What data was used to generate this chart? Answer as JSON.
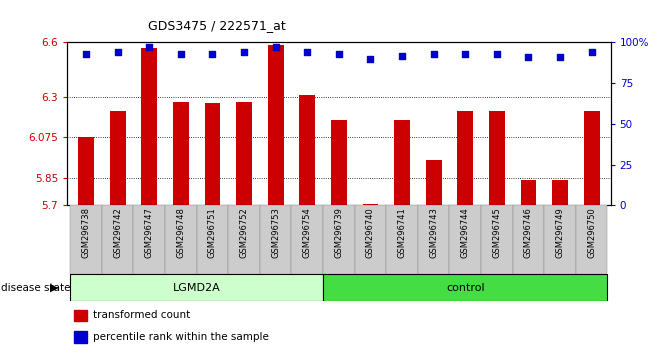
{
  "title": "GDS3475 / 222571_at",
  "samples": [
    "GSM296738",
    "GSM296742",
    "GSM296747",
    "GSM296748",
    "GSM296751",
    "GSM296752",
    "GSM296753",
    "GSM296754",
    "GSM296739",
    "GSM296740",
    "GSM296741",
    "GSM296743",
    "GSM296744",
    "GSM296745",
    "GSM296746",
    "GSM296749",
    "GSM296750"
  ],
  "transformed_count": [
    6.075,
    6.22,
    6.57,
    6.27,
    6.265,
    6.27,
    6.585,
    6.31,
    6.17,
    5.705,
    6.17,
    5.95,
    6.22,
    6.22,
    5.84,
    5.84,
    6.22
  ],
  "percentile_rank": [
    93,
    94,
    97,
    93,
    93,
    94,
    97,
    94,
    93,
    90,
    92,
    93,
    93,
    93,
    91,
    91,
    94
  ],
  "groups": {
    "LGMD2A": [
      0,
      1,
      2,
      3,
      4,
      5,
      6,
      7
    ],
    "control": [
      8,
      9,
      10,
      11,
      12,
      13,
      14,
      15,
      16
    ]
  },
  "ylim": [
    5.7,
    6.6
  ],
  "yticks": [
    5.7,
    5.85,
    6.075,
    6.3,
    6.6
  ],
  "ytick_labels": [
    "5.7",
    "5.85",
    "6.075",
    "6.3",
    "6.6"
  ],
  "right_yticks_pct": [
    0,
    25,
    50,
    75,
    100
  ],
  "right_ytick_labels": [
    "0",
    "25",
    "50",
    "75",
    "100%"
  ],
  "bar_color": "#cc0000",
  "dot_color": "#0000cc",
  "lgmd2a_color": "#ccffcc",
  "control_color": "#44dd44",
  "tick_area_color": "#cccccc",
  "bar_width": 0.5
}
